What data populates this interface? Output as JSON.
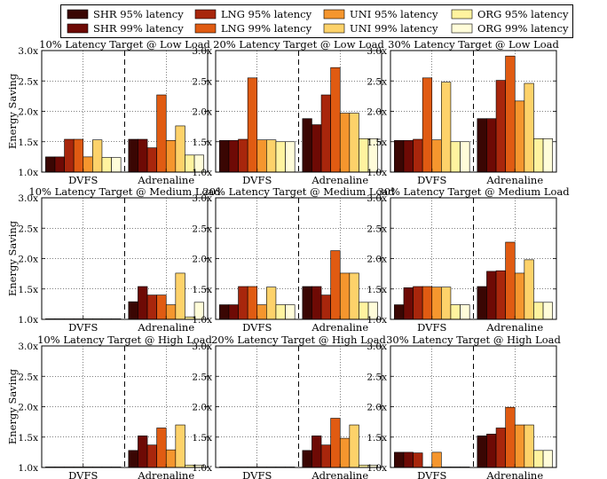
{
  "legend": [
    {
      "label": "SHR 95% latency",
      "color": "#3a0603"
    },
    {
      "label": "SHR 99% latency",
      "color": "#6e0a05"
    },
    {
      "label": "LNG 95% latency",
      "color": "#a8260c"
    },
    {
      "label": "LNG 99% latency",
      "color": "#e05b12"
    },
    {
      "label": "UNI 95% latency",
      "color": "#f5962e"
    },
    {
      "label": "UNI 99% latency",
      "color": "#fdd26a"
    },
    {
      "label": "ORG 95% latency",
      "color": "#fff39f"
    },
    {
      "label": "ORG 99% latency",
      "color": "#fffcd9"
    }
  ],
  "ylabel": "Energy Saving",
  "chart_data": [
    {
      "type": "bar",
      "title": "10% Latency Target @ Low Load",
      "categories": [
        "DVFS",
        "Adrenaline"
      ],
      "yticks": [
        "1.0x",
        "1.5x",
        "2.0x",
        "2.5x",
        "3.0x"
      ],
      "ylim": [
        1.0,
        3.0
      ],
      "grid": true,
      "values": [
        [
          1.25,
          1.25,
          1.54,
          1.54,
          1.25,
          1.53,
          1.24,
          1.24
        ],
        [
          1.54,
          1.54,
          1.4,
          2.27,
          1.52,
          1.76,
          1.28,
          1.28
        ]
      ]
    },
    {
      "type": "bar",
      "title": "20% Latency Target @ Low Load",
      "categories": [
        "DVFS",
        "Adrenaline"
      ],
      "yticks": [
        "1.0x",
        "1.5x",
        "2.0x",
        "2.5x",
        "3.0x"
      ],
      "ylim": [
        1.0,
        3.0
      ],
      "grid": true,
      "values": [
        [
          1.52,
          1.52,
          1.54,
          2.55,
          1.53,
          1.53,
          1.5,
          1.5
        ],
        [
          1.88,
          1.78,
          2.27,
          2.72,
          1.97,
          1.97,
          1.55,
          1.55
        ]
      ]
    },
    {
      "type": "bar",
      "title": "30% Latency Target @ Low Load",
      "categories": [
        "DVFS",
        "Adrenaline"
      ],
      "yticks": [
        "1.0x",
        "1.5x",
        "2.0x",
        "2.5x",
        "3.0x"
      ],
      "ylim": [
        1.0,
        3.0
      ],
      "grid": true,
      "values": [
        [
          1.52,
          1.52,
          1.54,
          2.55,
          1.53,
          2.48,
          1.5,
          1.5
        ],
        [
          1.88,
          1.88,
          2.51,
          2.91,
          2.17,
          2.46,
          1.55,
          1.55
        ]
      ]
    },
    {
      "type": "bar",
      "title": "10% Latency Target @ Medium Load",
      "categories": [
        "DVFS",
        "Adrenaline"
      ],
      "yticks": [
        "1.0x",
        "1.5x",
        "2.0x",
        "2.5x",
        "3.0x"
      ],
      "ylim": [
        1.0,
        3.0
      ],
      "grid": true,
      "values": [
        [
          1.0,
          1.0,
          1.0,
          1.0,
          1.0,
          1.0,
          1.0,
          1.0
        ],
        [
          1.29,
          1.54,
          1.4,
          1.4,
          1.24,
          1.76,
          1.04,
          1.28
        ]
      ]
    },
    {
      "type": "bar",
      "title": "20% Latency Target @ Medium Load",
      "categories": [
        "DVFS",
        "Adrenaline"
      ],
      "yticks": [
        "1.0x",
        "1.5x",
        "2.0x",
        "2.5x",
        "3.0x"
      ],
      "ylim": [
        1.0,
        3.0
      ],
      "grid": true,
      "values": [
        [
          1.24,
          1.24,
          1.54,
          1.54,
          1.24,
          1.53,
          1.24,
          1.24
        ],
        [
          1.54,
          1.54,
          1.4,
          2.13,
          1.76,
          1.76,
          1.28,
          1.28
        ]
      ]
    },
    {
      "type": "bar",
      "title": "30% Latency Target @ Medium Load",
      "categories": [
        "DVFS",
        "Adrenaline"
      ],
      "yticks": [
        "1.0x",
        "1.5x",
        "2.0x",
        "2.5x",
        "3.0x"
      ],
      "ylim": [
        1.0,
        3.0
      ],
      "grid": true,
      "values": [
        [
          1.24,
          1.52,
          1.54,
          1.54,
          1.53,
          1.53,
          1.24,
          1.24
        ],
        [
          1.54,
          1.79,
          1.8,
          2.27,
          1.76,
          1.98,
          1.28,
          1.28
        ]
      ]
    },
    {
      "type": "bar",
      "title": "10% Latency Target @ High Load",
      "categories": [
        "DVFS",
        "Adrenaline"
      ],
      "yticks": [
        "1.0x",
        "1.5x",
        "2.0x",
        "2.5x",
        "3.0x"
      ],
      "ylim": [
        1.0,
        3.0
      ],
      "grid": true,
      "values": [
        [
          1.0,
          1.0,
          1.0,
          1.0,
          1.0,
          1.0,
          1.0,
          1.0
        ],
        [
          1.28,
          1.52,
          1.37,
          1.65,
          1.29,
          1.7,
          1.04,
          1.04
        ]
      ]
    },
    {
      "type": "bar",
      "title": "20% Latency Target @ High Load",
      "categories": [
        "DVFS",
        "Adrenaline"
      ],
      "yticks": [
        "1.0x",
        "1.5x",
        "2.0x",
        "2.5x",
        "3.0x"
      ],
      "ylim": [
        1.0,
        3.0
      ],
      "grid": true,
      "values": [
        [
          1.0,
          1.0,
          1.0,
          1.0,
          1.0,
          1.0,
          1.0,
          1.0
        ],
        [
          1.28,
          1.52,
          1.37,
          1.81,
          1.48,
          1.7,
          1.04,
          1.04
        ]
      ]
    },
    {
      "type": "bar",
      "title": "30% Latency Target @ High Load",
      "categories": [
        "DVFS",
        "Adrenaline"
      ],
      "yticks": [
        "1.0x",
        "1.5x",
        "2.0x",
        "2.5x",
        "3.0x"
      ],
      "ylim": [
        1.0,
        3.0
      ],
      "grid": true,
      "values": [
        [
          1.25,
          1.25,
          1.24,
          1.0,
          1.25,
          1.0,
          1.0,
          1.0
        ],
        [
          1.52,
          1.55,
          1.65,
          1.99,
          1.7,
          1.7,
          1.28,
          1.28
        ]
      ]
    }
  ]
}
